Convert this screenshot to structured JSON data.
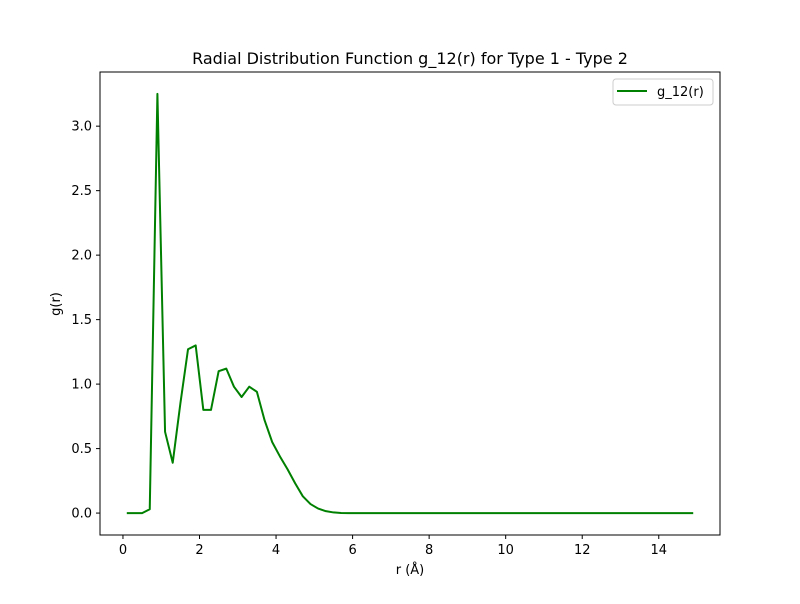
{
  "chart_data": {
    "type": "line",
    "title": "Radial Distribution Function g_12(r) for Type 1 - Type 2",
    "xlabel": "r (Å)",
    "ylabel": "g(r)",
    "xlim": [
      -0.6,
      15.6
    ],
    "ylim": [
      -0.17,
      3.42
    ],
    "xticks": [
      0,
      2,
      4,
      6,
      8,
      10,
      12,
      14
    ],
    "xtick_labels": [
      "0",
      "2",
      "4",
      "6",
      "8",
      "10",
      "12",
      "14"
    ],
    "yticks": [
      0.0,
      0.5,
      1.0,
      1.5,
      2.0,
      2.5,
      3.0
    ],
    "ytick_labels": [
      "0.0",
      "0.5",
      "1.0",
      "1.5",
      "2.0",
      "2.5",
      "3.0"
    ],
    "grid": false,
    "legend_position": "top-right",
    "series": [
      {
        "name": "g_12(r)",
        "color": "#008000",
        "x": [
          0.1,
          0.3,
          0.5,
          0.7,
          0.9,
          1.1,
          1.3,
          1.5,
          1.7,
          1.9,
          2.1,
          2.3,
          2.5,
          2.7,
          2.9,
          3.1,
          3.3,
          3.5,
          3.7,
          3.9,
          4.1,
          4.3,
          4.5,
          4.7,
          4.9,
          5.1,
          5.3,
          5.5,
          5.7,
          5.9,
          6.1,
          7.0,
          8.0,
          9.0,
          10.0,
          11.0,
          12.0,
          13.0,
          14.0,
          14.9
        ],
        "y": [
          0.0,
          0.0,
          0.0,
          0.03,
          3.25,
          0.63,
          0.39,
          0.85,
          1.27,
          1.3,
          0.8,
          0.8,
          1.1,
          1.12,
          0.98,
          0.9,
          0.98,
          0.94,
          0.72,
          0.55,
          0.44,
          0.34,
          0.23,
          0.13,
          0.07,
          0.035,
          0.015,
          0.005,
          0.001,
          0.0,
          0.0,
          0.0,
          0.0,
          0.0,
          0.0,
          0.0,
          0.0,
          0.0,
          0.0,
          0.0
        ]
      }
    ]
  }
}
